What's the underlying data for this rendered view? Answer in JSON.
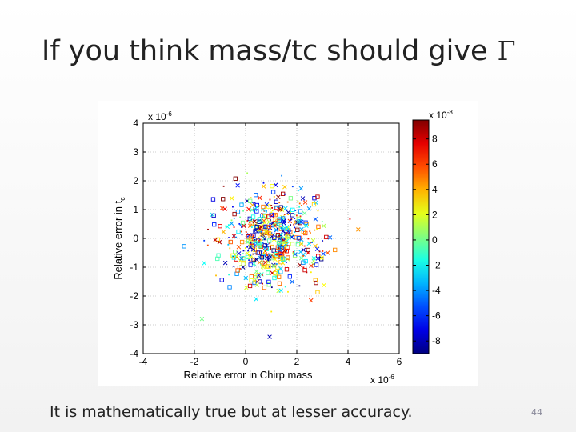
{
  "slide": {
    "title": "If you think mass/tc should give",
    "title_symbol": "Γ",
    "caption": "It is mathematically true but at lesser accuracy.",
    "page_number": "44"
  },
  "chart_data": {
    "type": "scatter",
    "title": "",
    "xlabel": "Relative error in Chirp mass",
    "ylabel_main": "Relative error in t",
    "ylabel_sub": "c",
    "x_exponent": "x 10",
    "x_exponent_power": "-6",
    "y_exponent": "x 10",
    "y_exponent_power": "-6",
    "xlim": [
      -4,
      6
    ],
    "ylim": [
      -4,
      4
    ],
    "x_ticks": [
      "-4",
      "-2",
      "0",
      "2",
      "4",
      "6"
    ],
    "y_ticks": [
      "4",
      "3",
      "2",
      "1",
      "0",
      "-1",
      "-2",
      "-3",
      "-4"
    ],
    "grid": true,
    "markers": [
      "square",
      "cross",
      "dot"
    ],
    "colorbar": {
      "colormap": "jet",
      "exponent": "x 10",
      "exponent_power": "-8",
      "range": [
        -9,
        9.5
      ],
      "ticks": [
        "8",
        "6",
        "4",
        "2",
        "0",
        "-2",
        "-4",
        "-6",
        "-8"
      ]
    },
    "distribution": {
      "center": [
        1.0,
        0.0
      ],
      "spread": [
        1.0,
        0.8
      ],
      "count": 620
    }
  }
}
